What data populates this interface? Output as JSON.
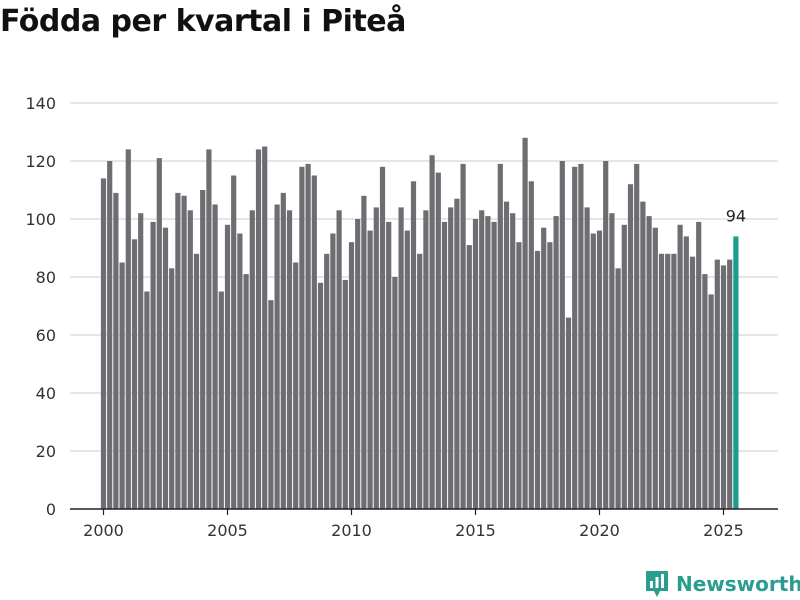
{
  "title": "Födda per kvartal i Piteå",
  "brand": {
    "name": "Newsworthy",
    "icon": "newsworthy-logo-icon",
    "color": "#2a9d8f"
  },
  "colors": {
    "bar": "#6e6d72",
    "highlight": "#1a9e8f",
    "grid": "#dddddd",
    "axis": "#222222"
  },
  "chart_data": {
    "type": "bar",
    "title": "Födda per kvartal i Piteå",
    "xlabel": "",
    "ylabel": "",
    "ylim": [
      0,
      140
    ],
    "yticks": [
      0,
      20,
      40,
      60,
      80,
      100,
      120,
      140
    ],
    "xticks": [
      2000,
      2005,
      2010,
      2015,
      2020,
      2025
    ],
    "start": {
      "year": 2000,
      "quarter": 1
    },
    "categories": [
      "2000 K1",
      "2000 K2",
      "2000 K3",
      "2000 K4",
      "2001 K1",
      "2001 K2",
      "2001 K3",
      "2001 K4",
      "2002 K1",
      "2002 K2",
      "2002 K3",
      "2002 K4",
      "2003 K1",
      "2003 K2",
      "2003 K3",
      "2003 K4",
      "2004 K1",
      "2004 K2",
      "2004 K3",
      "2004 K4",
      "2005 K1",
      "2005 K2",
      "2005 K3",
      "2005 K4",
      "2006 K1",
      "2006 K2",
      "2006 K3",
      "2006 K4",
      "2007 K1",
      "2007 K2",
      "2007 K3",
      "2007 K4",
      "2008 K1",
      "2008 K2",
      "2008 K3",
      "2008 K4",
      "2009 K1",
      "2009 K2",
      "2009 K3",
      "2009 K4",
      "2010 K1",
      "2010 K2",
      "2010 K3",
      "2010 K4",
      "2011 K1",
      "2011 K2",
      "2011 K3",
      "2011 K4",
      "2012 K1",
      "2012 K2",
      "2012 K3",
      "2012 K4",
      "2013 K1",
      "2013 K2",
      "2013 K3",
      "2013 K4",
      "2014 K1",
      "2014 K2",
      "2014 K3",
      "2014 K4",
      "2015 K1",
      "2015 K2",
      "2015 K3",
      "2015 K4",
      "2016 K1",
      "2016 K2",
      "2016 K3",
      "2016 K4",
      "2017 K1",
      "2017 K2",
      "2017 K3",
      "2017 K4",
      "2018 K1",
      "2018 K2",
      "2018 K3",
      "2018 K4",
      "2019 K1",
      "2019 K2",
      "2019 K3",
      "2019 K4",
      "2020 K1",
      "2020 K2",
      "2020 K3",
      "2020 K4",
      "2021 K1",
      "2021 K2",
      "2021 K3",
      "2021 K4",
      "2022 K1",
      "2022 K2",
      "2022 K3",
      "2022 K4",
      "2023 K1",
      "2023 K2",
      "2023 K3",
      "2023 K4",
      "2024 K1",
      "2024 K2",
      "2024 K3",
      "2024 K4",
      "2025 K1",
      "2025 K2",
      "2025 K3"
    ],
    "values": [
      114,
      120,
      109,
      85,
      124,
      93,
      102,
      75,
      99,
      121,
      97,
      83,
      109,
      108,
      103,
      88,
      110,
      124,
      105,
      75,
      98,
      115,
      95,
      81,
      103,
      124,
      125,
      72,
      105,
      109,
      103,
      85,
      118,
      119,
      115,
      78,
      88,
      95,
      103,
      79,
      92,
      100,
      108,
      96,
      104,
      118,
      99,
      80,
      104,
      96,
      113,
      88,
      103,
      122,
      116,
      99,
      104,
      107,
      119,
      91,
      100,
      103,
      101,
      99,
      119,
      106,
      102,
      92,
      128,
      113,
      89,
      97,
      92,
      101,
      120,
      66,
      118,
      119,
      104,
      95,
      96,
      120,
      102,
      83,
      98,
      112,
      119,
      106,
      101,
      97,
      88,
      88,
      88,
      98,
      94,
      87,
      99,
      81,
      74,
      86,
      84,
      86,
      94
    ],
    "highlight_index": 102,
    "highlight_label": "94"
  }
}
